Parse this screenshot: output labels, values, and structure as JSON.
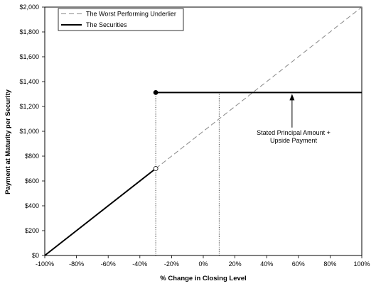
{
  "chart_data": {
    "type": "line",
    "xlabel": "% Change in Closing Level",
    "ylabel": "Payment at Maturity per Security",
    "xlim": [
      -100,
      100
    ],
    "ylim": [
      0,
      2000
    ],
    "x_ticks": [
      -100,
      -80,
      -60,
      -40,
      -20,
      0,
      20,
      40,
      60,
      80,
      100
    ],
    "x_tick_labels": [
      "-100%",
      "-80%",
      "-60%",
      "-40%",
      "-20%",
      "0%",
      "20%",
      "40%",
      "60%",
      "80%",
      "100%"
    ],
    "y_ticks": [
      0,
      200,
      400,
      600,
      800,
      1000,
      1200,
      1400,
      1600,
      1800,
      2000
    ],
    "y_tick_labels": [
      "$0",
      "$200",
      "$400",
      "$600",
      "$800",
      "$1,000",
      "$1,200",
      "$1,400",
      "$1,600",
      "$1,800",
      "$2,000"
    ],
    "grid": false,
    "legend_position": "top-left",
    "series": [
      {
        "name": "The Worst Performing Underlier",
        "style": "dashed",
        "color": "#888888",
        "x": [
          -30,
          100
        ],
        "y": [
          700,
          2000
        ]
      },
      {
        "name": "The Securities",
        "style": "solid",
        "color": "#000000",
        "segments": [
          {
            "x": [
              -100,
              -30
            ],
            "y": [
              0,
              700
            ]
          },
          {
            "x": [
              -30,
              100
            ],
            "y": [
              1312,
              1312
            ]
          }
        ]
      }
    ],
    "markers": [
      {
        "x": -30,
        "y": 1312,
        "fill": "filled"
      },
      {
        "x": -30,
        "y": 700,
        "fill": "hollow"
      }
    ],
    "reference_lines": [
      {
        "x": -30,
        "y_from": 0,
        "y_to": 1312,
        "style": "dotted"
      },
      {
        "x": 10,
        "y_from": 0,
        "y_to": 1312,
        "style": "dotted"
      }
    ],
    "annotations": [
      {
        "text_lines": [
          "Stated Principal Amount +",
          "Upside Payment"
        ],
        "arrow_x": 56,
        "arrow_from_y": 1030,
        "arrow_to_y": 1312
      }
    ]
  }
}
